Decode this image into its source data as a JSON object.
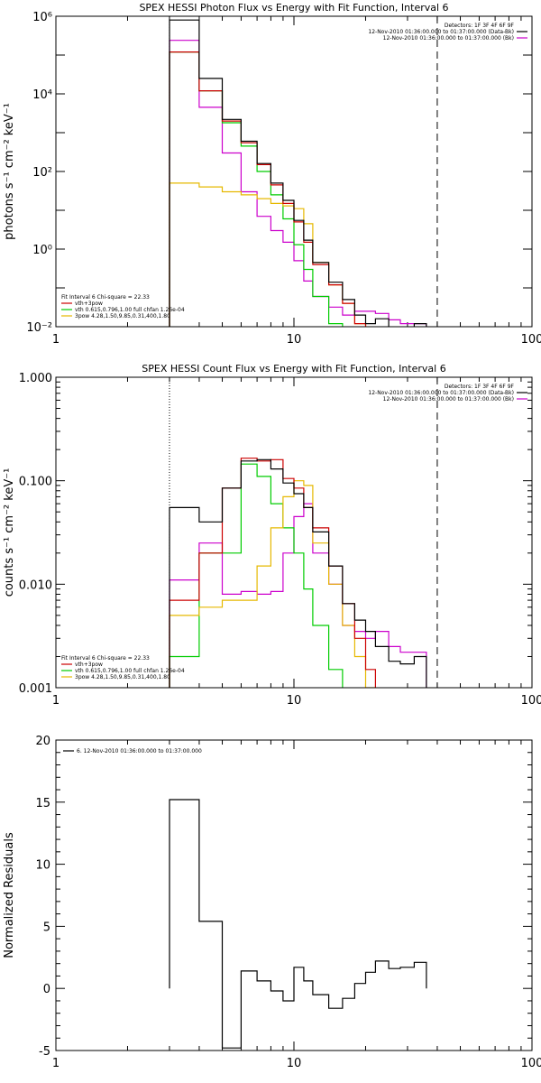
{
  "chart_data": [
    {
      "type": "line",
      "title": "SPEX HESSI Photon Flux vs Energy with Fit Function, Interval 6",
      "ylabel": "photons s⁻¹ cm⁻² keV⁻¹",
      "xlabel": "",
      "xscale": "log",
      "yscale": "log",
      "xlim": [
        1,
        100
      ],
      "ylim": [
        0.01,
        1000000
      ],
      "xticks": [
        "1",
        "10",
        "100"
      ],
      "yticks": [
        "10⁻²",
        "10⁰",
        "10²",
        "10⁴",
        "10⁶"
      ],
      "dotted_line_x": 3,
      "dashed_line_x": 40,
      "legend_top": [
        "Detectors: 1F 3F 4F 6F 9F",
        "12-Nov-2010 01:36:00.000 to 01:37:00.000 (Data-Bk)",
        "12-Nov-2010 01:36:00.000 to 01:37:00.000 (Bk)"
      ],
      "legend_bottom": [
        "Fit Interval 6   Chi-square = 22.33",
        "vth+3pow",
        "vth 0.615,0.796,1.00  full chfan 1.26e-04",
        "3pow 4.28,1.50,9.85,0.31,400,1.80"
      ],
      "edges": [
        3,
        4,
        5,
        6,
        7,
        8,
        9,
        10,
        11,
        12,
        14,
        16,
        18,
        20,
        22,
        25,
        28,
        32,
        36,
        40
      ],
      "series": [
        {
          "name": "(Data-Bk)",
          "color": "#000000",
          "values": [
            800000,
            25000,
            2200,
            600,
            160,
            50,
            18,
            5.5,
            1.7,
            0.45,
            0.14,
            0.05,
            0.02,
            0.012,
            0.016,
            0.009,
            0.009,
            0.012
          ]
        },
        {
          "name": "vth+3pow",
          "color": "#cc0000",
          "values": [
            120000,
            12000,
            2000,
            550,
            150,
            45,
            15,
            5,
            1.5,
            0.4,
            0.12,
            0.04,
            0.012,
            0.004
          ]
        },
        {
          "name": "vth",
          "color": "#00cc00",
          "values": [
            120000,
            12000,
            1800,
            450,
            100,
            25,
            6,
            1.3,
            0.3,
            0.06,
            0.012
          ]
        },
        {
          "name": "3pow",
          "color": "#e6b800",
          "values": [
            50,
            40,
            30,
            25,
            20,
            15,
            13,
            11,
            4.5,
            0.45,
            0.12,
            0.04,
            0.012,
            0.004
          ]
        },
        {
          "name": "(Bk)",
          "color": "#cc00cc",
          "values": [
            240000,
            4500,
            300,
            30,
            7,
            3,
            1.5,
            0.5,
            0.15,
            0.06,
            0.032,
            0.02,
            0.025,
            0.025,
            0.022,
            0.015,
            0.012,
            0.012
          ]
        }
      ]
    },
    {
      "type": "line",
      "title": "SPEX HESSI Count Flux vs Energy with Fit Function, Interval 6",
      "ylabel": "counts s⁻¹ cm⁻² keV⁻¹",
      "xlabel": "",
      "xscale": "log",
      "yscale": "log",
      "xlim": [
        1,
        100
      ],
      "ylim": [
        0.001,
        1
      ],
      "xticks": [
        "1",
        "10",
        "100"
      ],
      "yticks": [
        "0.001",
        "0.010",
        "0.100",
        "1.000"
      ],
      "dotted_line_x": 3,
      "dashed_line_x": 40,
      "legend_top": [
        "Detectors: 1F 3F 4F 6F 9F",
        "12-Nov-2010 01:36:00.000 to 01:37:00.000 (Data-Bk)",
        "12-Nov-2010 01:36:00.000 to 01:37:00.000 (Bk)"
      ],
      "legend_bottom": [
        "Fit Interval 6   Chi-square = 22.33",
        "vth+3pow",
        "vth 0.615,0.796,1.00  full chfan 1.26e-04",
        "3pow 4.28,1.50,9.85,0.31,400,1.80"
      ],
      "edges": [
        3,
        4,
        5,
        6,
        7,
        8,
        9,
        10,
        11,
        12,
        14,
        16,
        18,
        20,
        22,
        25,
        28,
        32,
        36,
        40
      ],
      "series": [
        {
          "name": "(Data-Bk)",
          "color": "#000000",
          "values": [
            0.055,
            0.04,
            0.085,
            0.155,
            0.16,
            0.13,
            0.095,
            0.075,
            0.055,
            0.032,
            0.015,
            0.0065,
            0.0045,
            0.0035,
            0.0025,
            0.0018,
            0.0017,
            0.002
          ]
        },
        {
          "name": "vth+3pow",
          "color": "#cc0000",
          "values": [
            0.007,
            0.02,
            0.085,
            0.165,
            0.155,
            0.16,
            0.105,
            0.085,
            0.055,
            0.035,
            0.015,
            0.0065,
            0.003,
            0.0015
          ]
        },
        {
          "name": "vth",
          "color": "#00cc00",
          "values": [
            0.002,
            0.02,
            0.02,
            0.145,
            0.11,
            0.06,
            0.035,
            0.02,
            0.009,
            0.004,
            0.0015,
            0.0007
          ]
        },
        {
          "name": "3pow",
          "color": "#e6b800",
          "values": [
            0.005,
            0.006,
            0.007,
            0.007,
            0.015,
            0.035,
            0.07,
            0.1,
            0.09,
            0.025,
            0.01,
            0.004,
            0.002,
            0.001
          ]
        },
        {
          "name": "(Bk)",
          "color": "#cc00cc",
          "values": [
            0.011,
            0.025,
            0.008,
            0.0085,
            0.008,
            0.0085,
            0.02,
            0.045,
            0.06,
            0.02,
            0.01,
            0.004,
            0.0035,
            0.003,
            0.0035,
            0.0025,
            0.0022,
            0.0022
          ]
        }
      ]
    },
    {
      "type": "line",
      "title": "",
      "ylabel": "Normalized Residuals",
      "xlabel": "",
      "xscale": "log",
      "yscale": "linear",
      "xlim": [
        1,
        100
      ],
      "ylim": [
        -5,
        20
      ],
      "xticks": [
        "1",
        "10",
        "100"
      ],
      "yticks": [
        "-5",
        "0",
        "5",
        "10",
        "15",
        "20"
      ],
      "legend_top": [
        "6. 12-Nov-2010 01:36:00.000 to 01:37:00.000"
      ],
      "edges": [
        3,
        4,
        5,
        6,
        7,
        8,
        9,
        10,
        11,
        12,
        14,
        16,
        18,
        20,
        22,
        25,
        28,
        32,
        36,
        40
      ],
      "series": [
        {
          "name": "",
          "color": "#000000",
          "values": [
            15.2,
            5.4,
            -4.8,
            1.4,
            0.6,
            -0.2,
            -1,
            1.7,
            0.6,
            -0.5,
            -1.6,
            -0.8,
            0.4,
            1.3,
            2.2,
            1.6,
            1.7,
            2.1
          ]
        }
      ]
    }
  ]
}
